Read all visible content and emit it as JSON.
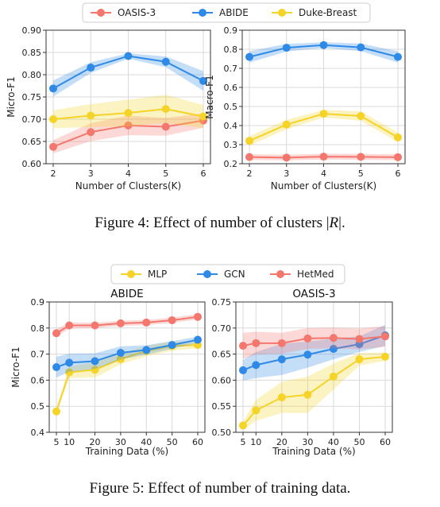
{
  "figure4": {
    "caption_prefix": "Figure 4: Effect of number of clusters |",
    "caption_var": "R",
    "caption_suffix": "|."
  },
  "figure5": {
    "caption": "Figure 5: Effect of number of training data."
  },
  "colors": {
    "red": "#f4776e",
    "blue": "#2e8ae6",
    "yellow": "#f5d327"
  },
  "chart_data": [
    {
      "type": "line",
      "panel": "fig4-left",
      "xlabel": "Number of Clusters(K)",
      "ylabel": "Micro-F1",
      "x": [
        2,
        3,
        4,
        5,
        6
      ],
      "xticks": [
        2,
        3,
        4,
        5,
        6
      ],
      "ylim": [
        0.6,
        0.9
      ],
      "yticks": [
        0.6,
        0.65,
        0.7,
        0.75,
        0.8,
        0.85,
        0.9
      ],
      "ytick_labels": [
        "0.60",
        "0.65",
        "0.70",
        "0.75",
        "0.80",
        "0.85",
        "0.90"
      ],
      "grid": true,
      "legend": {
        "position": "top",
        "entries": [
          "OASIS-3",
          "ABIDE",
          "Duke-Breast"
        ]
      },
      "series": [
        {
          "name": "OASIS-3",
          "color": "#f4776e",
          "values": [
            0.638,
            0.671,
            0.686,
            0.683,
            0.697
          ],
          "band": [
            0.015,
            0.02,
            0.022,
            0.02,
            0.016
          ]
        },
        {
          "name": "ABIDE",
          "color": "#2e8ae6",
          "values": [
            0.769,
            0.816,
            0.842,
            0.829,
            0.786
          ],
          "band": [
            0.018,
            0.012,
            0.006,
            0.012,
            0.022
          ]
        },
        {
          "name": "Duke-Breast",
          "color": "#f5d327",
          "values": [
            0.7,
            0.708,
            0.714,
            0.723,
            0.706
          ],
          "band": [
            0.02,
            0.026,
            0.03,
            0.032,
            0.026
          ]
        }
      ]
    },
    {
      "type": "line",
      "panel": "fig4-right",
      "xlabel": "Number of Clusters(K)",
      "ylabel": "Macro-F1",
      "x": [
        2,
        3,
        4,
        5,
        6
      ],
      "xticks": [
        2,
        3,
        4,
        5,
        6
      ],
      "ylim": [
        0.2,
        0.9
      ],
      "yticks": [
        0.2,
        0.3,
        0.4,
        0.5,
        0.6,
        0.7,
        0.8,
        0.9
      ],
      "ytick_labels": [
        "0.2",
        "0.3",
        "0.4",
        "0.5",
        "0.6",
        "0.7",
        "0.8",
        "0.9"
      ],
      "grid": true,
      "series": [
        {
          "name": "OASIS-3",
          "color": "#f4776e",
          "values": [
            0.235,
            0.232,
            0.237,
            0.236,
            0.234
          ],
          "band": [
            0.015,
            0.015,
            0.015,
            0.015,
            0.015
          ]
        },
        {
          "name": "ABIDE",
          "color": "#2e8ae6",
          "values": [
            0.76,
            0.808,
            0.822,
            0.81,
            0.76
          ],
          "band": [
            0.03,
            0.02,
            0.015,
            0.02,
            0.03
          ]
        },
        {
          "name": "Duke-Breast",
          "color": "#f5d327",
          "values": [
            0.32,
            0.405,
            0.462,
            0.45,
            0.338
          ],
          "band": [
            0.025,
            0.025,
            0.02,
            0.025,
            0.025
          ]
        }
      ]
    },
    {
      "type": "line",
      "panel": "fig5-left",
      "title": "ABIDE",
      "xlabel": "Training Data (%)",
      "ylabel": "Micro-F1",
      "x": [
        5,
        10,
        20,
        30,
        40,
        50,
        60
      ],
      "xticks": [
        5,
        10,
        20,
        30,
        40,
        50,
        60
      ],
      "ylim": [
        0.4,
        0.9
      ],
      "yticks": [
        0.4,
        0.5,
        0.6,
        0.7,
        0.8,
        0.9
      ],
      "ytick_labels": [
        "0.4",
        "0.5",
        "0.6",
        "0.7",
        "0.8",
        "0.9"
      ],
      "grid": true,
      "legend": {
        "position": "top",
        "entries": [
          "MLP",
          "GCN",
          "HetMed"
        ]
      },
      "series": [
        {
          "name": "MLP",
          "color": "#f5d327",
          "values": [
            0.48,
            0.63,
            0.64,
            0.681,
            0.712,
            0.731,
            0.735
          ],
          "band": [
            0.008,
            0.022,
            0.03,
            0.02,
            0.02,
            0.018,
            0.012
          ]
        },
        {
          "name": "GCN",
          "color": "#2e8ae6",
          "values": [
            0.65,
            0.667,
            0.673,
            0.705,
            0.716,
            0.735,
            0.755
          ],
          "band": [
            0.04,
            0.035,
            0.03,
            0.025,
            0.018,
            0.015,
            0.012
          ]
        },
        {
          "name": "HetMed",
          "color": "#f4776e",
          "values": [
            0.78,
            0.81,
            0.81,
            0.818,
            0.821,
            0.83,
            0.843
          ],
          "band": [
            0.015,
            0.012,
            0.01,
            0.01,
            0.01,
            0.01,
            0.01
          ]
        }
      ]
    },
    {
      "type": "line",
      "panel": "fig5-right",
      "title": "OASIS-3",
      "xlabel": "Training Data (%)",
      "ylabel": "",
      "x": [
        5,
        10,
        20,
        30,
        40,
        50,
        60
      ],
      "xticks": [
        5,
        10,
        20,
        30,
        40,
        50,
        60
      ],
      "ylim": [
        0.5,
        0.75
      ],
      "yticks": [
        0.5,
        0.55,
        0.6,
        0.65,
        0.7,
        0.75
      ],
      "ytick_labels": [
        "0.50",
        "0.55",
        "0.60",
        "0.65",
        "0.70",
        "0.75"
      ],
      "grid": true,
      "series": [
        {
          "name": "MLP",
          "color": "#f5d327",
          "values": [
            0.513,
            0.542,
            0.567,
            0.572,
            0.607,
            0.64,
            0.645
          ],
          "band": [
            0.008,
            0.02,
            0.03,
            0.035,
            0.025,
            0.012,
            0.008
          ]
        },
        {
          "name": "GCN",
          "color": "#2e8ae6",
          "values": [
            0.619,
            0.629,
            0.64,
            0.649,
            0.66,
            0.669,
            0.686
          ],
          "band": [
            0.02,
            0.025,
            0.03,
            0.025,
            0.02,
            0.015,
            0.02
          ]
        },
        {
          "name": "HetMed",
          "color": "#f4776e",
          "values": [
            0.666,
            0.671,
            0.671,
            0.68,
            0.681,
            0.679,
            0.684
          ],
          "band": [
            0.025,
            0.022,
            0.02,
            0.02,
            0.02,
            0.02,
            0.02
          ]
        }
      ]
    }
  ]
}
